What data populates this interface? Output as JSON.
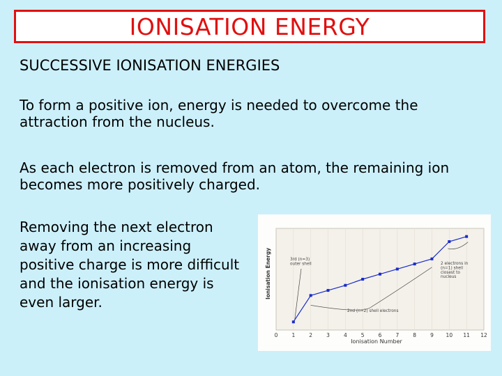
{
  "slide": {
    "title": "IONISATION ENERGY",
    "subtitle": "SUCCESSIVE IONISATION ENERGIES",
    "paragraphs": [
      "To form a positive ion, energy is needed to overcome the attraction from the nucleus.",
      "As each electron is removed from an atom, the remaining ion becomes more positively charged.",
      "Removing the next electron away from an increasing positive charge is more difficult and the ionisation energy is even larger."
    ]
  },
  "colors": {
    "title_red": "#e01010",
    "background": "#ccf0fa",
    "series_blue": "#1a2ccc"
  },
  "chart_data": {
    "type": "line",
    "title": "",
    "xlabel": "Ionisation Number",
    "ylabel": "Ionisation Energy",
    "x": [
      1,
      2,
      3,
      4,
      5,
      6,
      7,
      8,
      9,
      10,
      11
    ],
    "y": [
      0.8,
      3.4,
      3.9,
      4.4,
      5.0,
      5.5,
      6.0,
      6.5,
      7.0,
      8.7,
      9.2
    ],
    "xlim": [
      0,
      12
    ],
    "ylim": [
      0,
      10
    ],
    "x_tick_labels": [
      "0",
      "1",
      "2",
      "3",
      "4",
      "5",
      "6",
      "7",
      "8",
      "9",
      "10",
      "11",
      "12"
    ],
    "annotations": [
      {
        "label_lines": [
          "3rd (n=3)",
          "outer shell"
        ],
        "points": "1"
      },
      {
        "label_lines": [
          "2nd (n=2) shell electrons"
        ],
        "points": "2-9"
      },
      {
        "label_lines": [
          "2 electrons in",
          "(n=1) shell",
          "closest to",
          "nucleus"
        ],
        "points": "10-11"
      }
    ]
  }
}
